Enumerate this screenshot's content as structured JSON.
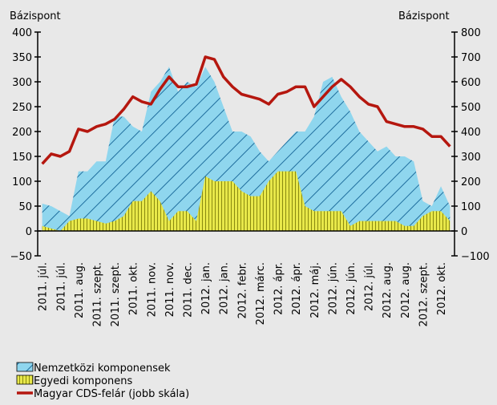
{
  "chart_data": {
    "type": "area-line",
    "y_label": "Bázispont",
    "y2_label": "Bázispont",
    "categories": [
      "2011. júl.",
      null,
      "2011. júl.",
      null,
      "2011. aug.",
      null,
      "2011. szept.",
      null,
      "2011. szept.",
      null,
      "2011. okt.",
      null,
      "2011. nov.",
      null,
      "2011. nov.",
      null,
      "2011. dec.",
      null,
      "2012. jan.",
      null,
      "2012. jan.",
      null,
      "2012. febr.",
      null,
      "2012. márc.",
      null,
      "2012. ápr.",
      null,
      "2012. ápr.",
      null,
      "2012. máj.",
      null,
      "2012. jún.",
      null,
      "2012. jún.",
      null,
      "2012. júl.",
      null,
      "2012. aug.",
      null,
      "2012. aug.",
      null,
      "2012. szept.",
      null,
      "2012. okt.",
      null
    ],
    "series": [
      {
        "name": "Nemzetközi komponensek",
        "color": "#8fd6ee",
        "hatch": "#1f6e9e",
        "axis": "y",
        "values": [
          55,
          50,
          40,
          30,
          120,
          120,
          140,
          140,
          230,
          230,
          210,
          200,
          280,
          300,
          330,
          280,
          300,
          290,
          330,
          300,
          250,
          200,
          200,
          190,
          160,
          140,
          160,
          180,
          200,
          200,
          230,
          300,
          310,
          270,
          240,
          200,
          180,
          160,
          170,
          150,
          150,
          140,
          60,
          50,
          90,
          50
        ]
      },
      {
        "name": "Egyedi komponens",
        "color": "#e8e84a",
        "hatch": "#8a8a10",
        "axis": "y",
        "values": [
          10,
          5,
          0,
          20,
          25,
          25,
          20,
          15,
          20,
          30,
          60,
          60,
          80,
          60,
          20,
          40,
          40,
          20,
          110,
          100,
          100,
          100,
          80,
          70,
          70,
          100,
          120,
          120,
          120,
          50,
          40,
          40,
          40,
          40,
          10,
          20,
          20,
          20,
          20,
          20,
          10,
          10,
          30,
          40,
          40,
          20
        ]
      },
      {
        "name": "Magyar CDS-felár (jobb skála)",
        "color": "#b5170f",
        "axis": "y2",
        "values": [
          270,
          310,
          300,
          320,
          410,
          400,
          420,
          430,
          450,
          490,
          540,
          520,
          510,
          570,
          620,
          580,
          580,
          590,
          700,
          690,
          620,
          580,
          550,
          540,
          530,
          510,
          550,
          560,
          580,
          580,
          500,
          540,
          580,
          610,
          580,
          540,
          510,
          500,
          440,
          430,
          420,
          420,
          410,
          380,
          380,
          340
        ]
      }
    ],
    "ylim": [
      -50,
      400
    ],
    "yticks": [
      400,
      350,
      300,
      250,
      200,
      150,
      100,
      50,
      0,
      {
        "value": -50,
        "label": "−50"
      }
    ],
    "y2lim": [
      -100,
      800
    ],
    "y2ticks": [
      800,
      700,
      600,
      500,
      400,
      300,
      200,
      100,
      0,
      {
        "value": -100,
        "label": "−100"
      }
    ],
    "legend": "bottom-left"
  }
}
